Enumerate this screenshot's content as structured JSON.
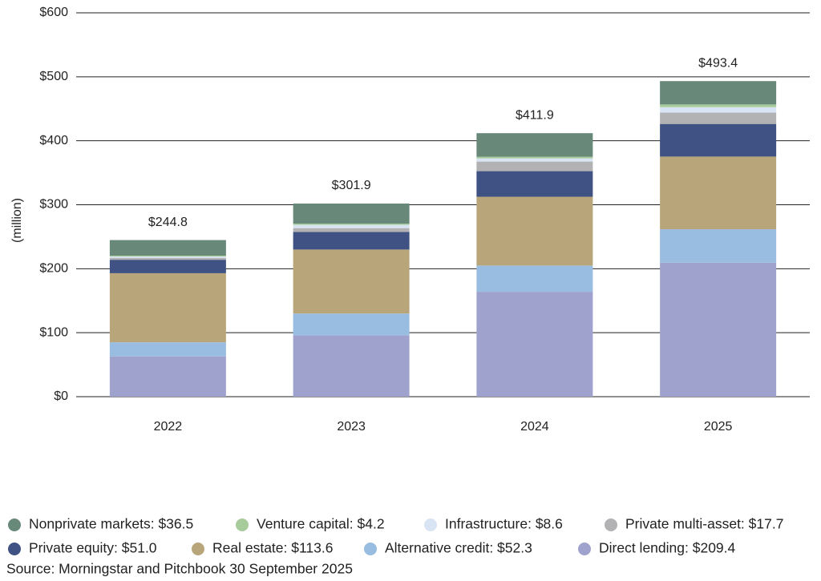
{
  "chart_data": {
    "type": "stacked-bar",
    "ylabel": "(million)",
    "categories": [
      "2022",
      "2023",
      "2024",
      "2025"
    ],
    "series": [
      {
        "name": "Nonprivate markets: $36.5",
        "color": "#68887a",
        "values": [
          24.3,
          31.4,
          36.9,
          36.5
        ]
      },
      {
        "name": "Venture capital: $4.2",
        "color": "#a8cb9c",
        "values": [
          1.5,
          2,
          2.5,
          4.2
        ]
      },
      {
        "name": "Infrastructure: $8.6",
        "color": "#d8e4f3",
        "values": [
          2,
          5,
          5,
          8.6
        ]
      },
      {
        "name": "Private multi-asset: $17.7",
        "color": "#b2b2b4",
        "values": [
          3,
          6,
          15,
          17.7
        ]
      },
      {
        "name": "Private equity: $51.0",
        "color": "#3f5283",
        "values": [
          21,
          27.5,
          40,
          51.0
        ]
      },
      {
        "name": "Real estate: $113.6",
        "color": "#b9a57a",
        "values": [
          108,
          100,
          107.5,
          113.6
        ]
      },
      {
        "name": "Alternative credit: $52.3",
        "color": "#99bde1",
        "values": [
          22,
          34,
          41,
          52.3
        ]
      },
      {
        "name": "Direct lending: $209.4",
        "color": "#a0a2ce",
        "values": [
          63,
          96,
          164,
          209.4
        ]
      }
    ],
    "totals": {
      "values": [
        244.8,
        301.9,
        411.9,
        493.4
      ],
      "value_labels": [
        "$244.8",
        "$301.9",
        "$411.9",
        "$493.4"
      ]
    },
    "ylim": [
      0,
      600
    ],
    "yticks": [
      {
        "value": 0,
        "label": "$0"
      },
      {
        "value": 100,
        "label": "$100"
      },
      {
        "value": 200,
        "label": "$200"
      },
      {
        "value": 300,
        "label": "$300"
      },
      {
        "value": 400,
        "label": "$400"
      },
      {
        "value": 500,
        "label": "$500"
      },
      {
        "value": 600,
        "label": "$600"
      }
    ],
    "grid": true,
    "source": "Source: Morningstar and Pitchbook 30 September 2025"
  }
}
